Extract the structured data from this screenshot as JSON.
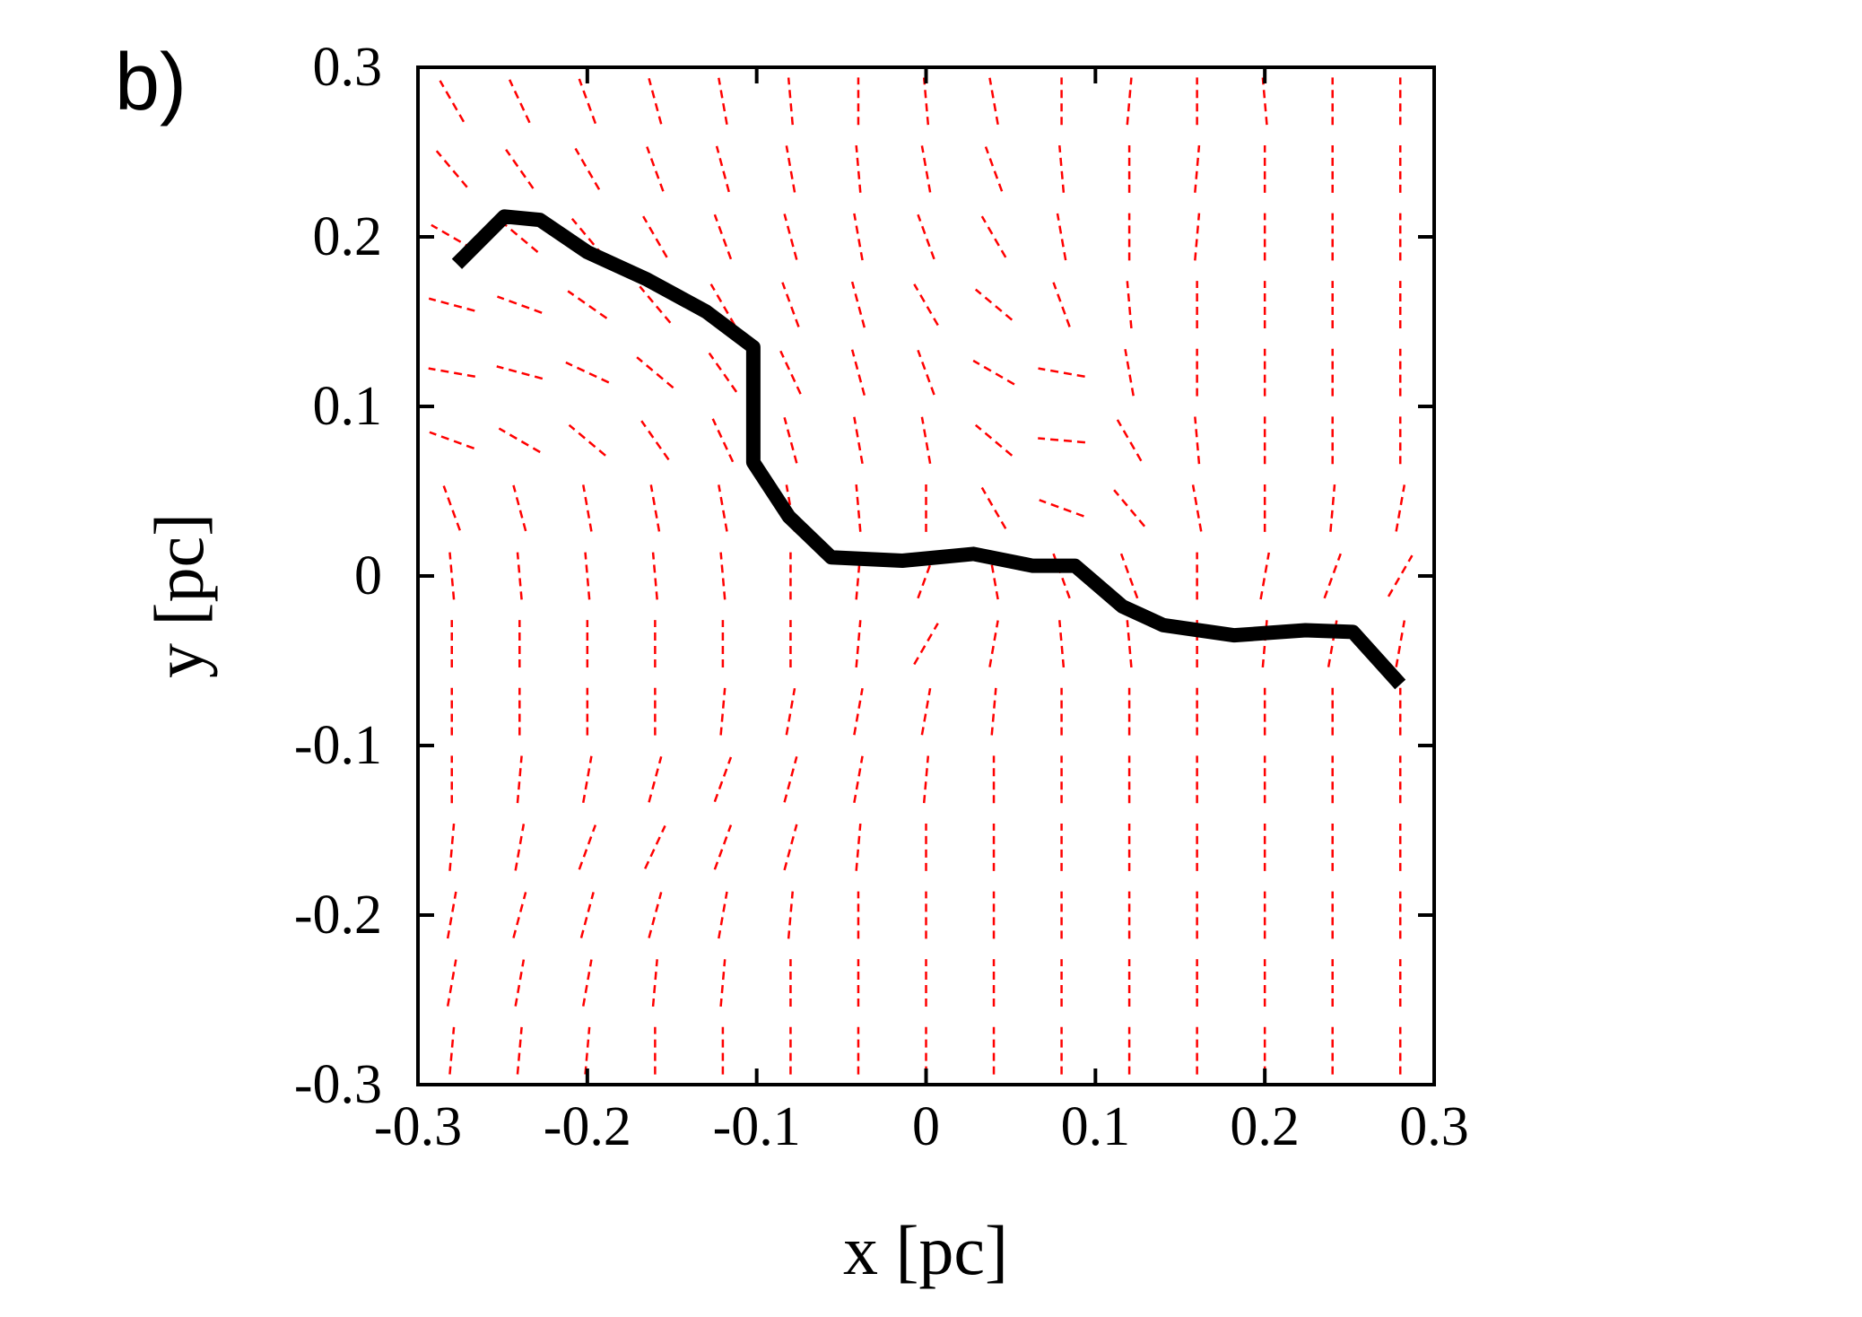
{
  "chart_data": {
    "type": "line",
    "panel_label": "b)",
    "x_label": "x  [pc]",
    "y_label": "y  [pc]",
    "xlim": [
      -0.3,
      0.3
    ],
    "ylim": [
      -0.3,
      0.3
    ],
    "xticks": [
      -0.3,
      -0.2,
      -0.1,
      0,
      0.1,
      0.2,
      0.3
    ],
    "yticks": [
      -0.3,
      -0.2,
      -0.1,
      0,
      0.1,
      0.2,
      0.3
    ],
    "x": [
      -0.277,
      -0.249,
      -0.228,
      -0.2,
      -0.165,
      -0.13,
      -0.102,
      -0.102,
      -0.081,
      -0.056,
      -0.014,
      0.028,
      0.063,
      0.088,
      0.116,
      0.14,
      0.182,
      0.224,
      0.252,
      0.28
    ],
    "series": [
      {
        "color": "#000000",
        "values": [
          0.184,
          0.212,
          0.21,
          0.191,
          0.175,
          0.156,
          0.135,
          0.067,
          0.035,
          0.011,
          0.009,
          0.013,
          0.006,
          0.006,
          -0.018,
          -0.029,
          -0.035,
          -0.032,
          -0.033,
          -0.064
        ]
      }
    ],
    "field": {
      "color": "#ff0000",
      "x": [
        -0.28,
        -0.24,
        -0.2,
        -0.16,
        -0.12,
        -0.08,
        -0.04,
        0,
        0.04,
        0.08,
        0.12,
        0.16,
        0.2,
        0.24,
        0.28
      ],
      "y": [
        0.28,
        0.24,
        0.2,
        0.16,
        0.12,
        0.08,
        0.04,
        0,
        -0.04,
        -0.08,
        -0.12,
        -0.16,
        -0.2,
        -0.24,
        -0.28
      ],
      "angle": [
        [
          120,
          115,
          110,
          105,
          100,
          95,
          90,
          95,
          100,
          90,
          85,
          90,
          95,
          90,
          90
        ],
        [
          130,
          125,
          120,
          110,
          105,
          100,
          95,
          100,
          110,
          95,
          90,
          85,
          90,
          90,
          90
        ],
        [
          150,
          140,
          130,
          120,
          110,
          105,
          100,
          110,
          120,
          100,
          90,
          85,
          90,
          90,
          90
        ],
        [
          165,
          160,
          145,
          130,
          120,
          110,
          105,
          120,
          140,
          110,
          95,
          90,
          90,
          90,
          90
        ],
        [
          170,
          165,
          155,
          140,
          125,
          115,
          105,
          110,
          150,
          170,
          100,
          90,
          90,
          90,
          90
        ],
        [
          160,
          150,
          140,
          125,
          115,
          105,
          100,
          100,
          140,
          175,
          120,
          95,
          90,
          90,
          90
        ],
        [
          110,
          105,
          100,
          100,
          100,
          100,
          95,
          90,
          120,
          160,
          130,
          100,
          90,
          85,
          80
        ],
        [
          95,
          95,
          95,
          95,
          95,
          90,
          85,
          70,
          100,
          110,
          110,
          90,
          80,
          70,
          60
        ],
        [
          90,
          90,
          90,
          90,
          90,
          90,
          85,
          60,
          80,
          95,
          95,
          90,
          85,
          80,
          80
        ],
        [
          90,
          90,
          90,
          90,
          85,
          80,
          80,
          80,
          85,
          90,
          90,
          90,
          90,
          90,
          90
        ],
        [
          90,
          85,
          80,
          75,
          70,
          75,
          80,
          85,
          90,
          90,
          90,
          90,
          90,
          90,
          90
        ],
        [
          85,
          80,
          70,
          65,
          70,
          75,
          85,
          90,
          90,
          90,
          90,
          90,
          90,
          90,
          90
        ],
        [
          80,
          75,
          75,
          75,
          80,
          85,
          90,
          90,
          90,
          90,
          90,
          90,
          90,
          90,
          90
        ],
        [
          80,
          80,
          80,
          85,
          85,
          90,
          90,
          90,
          90,
          90,
          90,
          90,
          90,
          90,
          90
        ],
        [
          85,
          85,
          85,
          90,
          90,
          90,
          90,
          90,
          90,
          90,
          90,
          90,
          90,
          90,
          90
        ]
      ]
    }
  }
}
